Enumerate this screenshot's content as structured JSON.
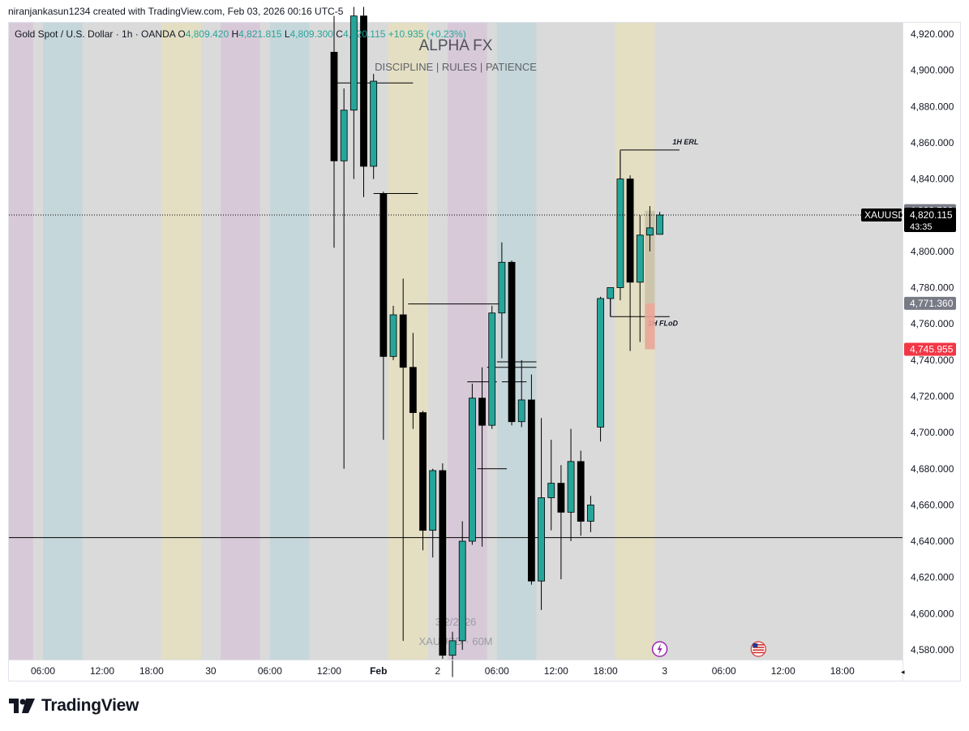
{
  "header": {
    "caption": "niranjankasun1234 created with TradingView.com, Feb 03, 2026 00:16 UTC-5"
  },
  "footer": {
    "brand": "TradingView"
  },
  "colors": {
    "up": "#26a69a",
    "down": "#000000",
    "price_label_bg": "#000000",
    "neutral_label_bg": "#787b86",
    "red_label_bg": "#f23645",
    "plot_bg": "#dadada"
  },
  "chart_data": {
    "type": "candlestick",
    "legend": {
      "symbol": "Gold Spot / U.S. Dollar · 1h · OANDA",
      "o_label": "O",
      "o": "4,809.420",
      "h_label": "H",
      "h": "4,821.815",
      "l_label": "L",
      "l": "4,809.300",
      "c_label": "C",
      "c": "4,820.115",
      "change": "+10.935 (+0.23%)"
    },
    "watermark": {
      "title": "ALPHA FX",
      "subtitle": "DISCIPLINE   |   RULES   |   PATIENCE"
    },
    "chart_watermark": {
      "date": "3/2/2026",
      "symbol": "XAUUSD · 60M"
    },
    "ylim": [
      4572,
      4932
    ],
    "y_ticks": [
      {
        "v": 4920,
        "label": "4,920.000"
      },
      {
        "v": 4900,
        "label": "4,900.000"
      },
      {
        "v": 4880,
        "label": "4,880.000"
      },
      {
        "v": 4860,
        "label": "4,860.000"
      },
      {
        "v": 4840,
        "label": "4,840.000"
      },
      {
        "v": 4800,
        "label": "4,800.000"
      },
      {
        "v": 4780,
        "label": "4,780.000"
      },
      {
        "v": 4760,
        "label": "4,760.000"
      },
      {
        "v": 4740,
        "label": "4,740.000"
      },
      {
        "v": 4720,
        "label": "4,720.000"
      },
      {
        "v": 4700,
        "label": "4,700.000"
      },
      {
        "v": 4680,
        "label": "4,680.000"
      },
      {
        "v": 4660,
        "label": "4,660.000"
      },
      {
        "v": 4640,
        "label": "4,640.000"
      },
      {
        "v": 4620,
        "label": "4,620.000"
      },
      {
        "v": 4600,
        "label": "4,600.000"
      },
      {
        "v": 4580,
        "label": "4,580.000"
      }
    ],
    "x_ticks": [
      {
        "i": -29.5,
        "label": "06:00"
      },
      {
        "i": -23.5,
        "label": "12:00"
      },
      {
        "i": -18.5,
        "label": "18:00"
      },
      {
        "i": -12.5,
        "label": "30"
      },
      {
        "i": -6.5,
        "label": "06:00"
      },
      {
        "i": -0.5,
        "label": "12:00"
      },
      {
        "i": 4.5,
        "label": "Feb",
        "bold": true
      },
      {
        "i": 10.5,
        "label": "2"
      },
      {
        "i": 16.5,
        "label": "06:00"
      },
      {
        "i": 22.5,
        "label": "12:00"
      },
      {
        "i": 27.5,
        "label": "18:00"
      },
      {
        "i": 33.5,
        "label": "3"
      },
      {
        "i": 39.5,
        "label": "06:00"
      },
      {
        "i": 45.5,
        "label": "12:00"
      },
      {
        "i": 51.5,
        "label": "18:00"
      }
    ],
    "sessions": [
      {
        "i0": -34.5,
        "i1": -30.5,
        "color": "#d8c9d9"
      },
      {
        "i0": -29.5,
        "i1": -25.5,
        "color": "#c6d7db"
      },
      {
        "i0": -17.5,
        "i1": -13.5,
        "color": "#e4dfc3"
      },
      {
        "i0": -11.5,
        "i1": -7.5,
        "color": "#d8c9d9"
      },
      {
        "i0": -6.5,
        "i1": -2.5,
        "color": "#c6d7db"
      },
      {
        "i0": 5.5,
        "i1": 9.5,
        "color": "#e4dfc3"
      },
      {
        "i0": 11.5,
        "i1": 15.5,
        "color": "#d8c9d9"
      },
      {
        "i0": 16.5,
        "i1": 20.5,
        "color": "#c6d7db"
      },
      {
        "i0": 28.5,
        "i1": 32.5,
        "color": "#e4dfc3"
      }
    ],
    "candles": [
      {
        "i": 0,
        "o": 4910,
        "h": 4930,
        "l": 4802,
        "c": 4850
      },
      {
        "i": 1,
        "o": 4850,
        "h": 4890,
        "l": 4680,
        "c": 4878
      },
      {
        "i": 2,
        "o": 4878,
        "h": 4935,
        "l": 4840,
        "c": 4930
      },
      {
        "i": 3,
        "o": 4930,
        "h": 4935,
        "l": 4830,
        "c": 4847
      },
      {
        "i": 4,
        "o": 4847,
        "h": 4898,
        "l": 4840,
        "c": 4894
      },
      {
        "i": 5,
        "o": 4832,
        "h": 4833,
        "l": 4696,
        "c": 4742
      },
      {
        "i": 6,
        "o": 4742,
        "h": 4770,
        "l": 4740,
        "c": 4765
      },
      {
        "i": 7,
        "o": 4765,
        "h": 4785,
        "l": 4585,
        "c": 4736
      },
      {
        "i": 8,
        "o": 4736,
        "h": 4755,
        "l": 4702,
        "c": 4711
      },
      {
        "i": 9,
        "o": 4711,
        "h": 4712,
        "l": 4635,
        "c": 4646
      },
      {
        "i": 10,
        "o": 4646,
        "h": 4680,
        "l": 4631,
        "c": 4679
      },
      {
        "i": 11,
        "o": 4679,
        "h": 4683,
        "l": 4575,
        "c": 4577
      },
      {
        "i": 12,
        "o": 4577,
        "h": 4590,
        "l": 4565,
        "c": 4585
      },
      {
        "i": 13,
        "o": 4585,
        "h": 4651,
        "l": 4580,
        "c": 4640
      },
      {
        "i": 14,
        "o": 4640,
        "h": 4727,
        "l": 4638,
        "c": 4719
      },
      {
        "i": 15,
        "o": 4719,
        "h": 4736,
        "l": 4637,
        "c": 4704
      },
      {
        "i": 16,
        "o": 4704,
        "h": 4770,
        "l": 4702,
        "c": 4766
      },
      {
        "i": 17,
        "o": 4766,
        "h": 4805,
        "l": 4741,
        "c": 4794
      },
      {
        "i": 18,
        "o": 4794,
        "h": 4795,
        "l": 4704,
        "c": 4706
      },
      {
        "i": 19,
        "o": 4706,
        "h": 4740,
        "l": 4703,
        "c": 4718
      },
      {
        "i": 20,
        "o": 4718,
        "h": 4732,
        "l": 4616,
        "c": 4618
      },
      {
        "i": 21,
        "o": 4618,
        "h": 4708,
        "l": 4602,
        "c": 4664
      },
      {
        "i": 22,
        "o": 4664,
        "h": 4696,
        "l": 4646,
        "c": 4672
      },
      {
        "i": 23,
        "o": 4672,
        "h": 4682,
        "l": 4619,
        "c": 4656
      },
      {
        "i": 24,
        "o": 4656,
        "h": 4702,
        "l": 4640,
        "c": 4684
      },
      {
        "i": 25,
        "o": 4684,
        "h": 4690,
        "l": 4643,
        "c": 4651
      },
      {
        "i": 26,
        "o": 4651,
        "h": 4665,
        "l": 4645,
        "c": 4660
      },
      {
        "i": 27,
        "o": 4703,
        "h": 4775,
        "l": 4695,
        "c": 4774
      },
      {
        "i": 28,
        "o": 4774,
        "h": 4779,
        "l": 4764,
        "c": 4780
      },
      {
        "i": 29,
        "o": 4780,
        "h": 4855,
        "l": 4773,
        "c": 4840
      },
      {
        "i": 30,
        "o": 4840,
        "h": 4842,
        "l": 4745,
        "c": 4783
      },
      {
        "i": 31,
        "o": 4783,
        "h": 4820,
        "l": 4750,
        "c": 4809
      },
      {
        "i": 32,
        "o": 4809,
        "h": 4825,
        "l": 4800,
        "c": 4813
      },
      {
        "i": 33,
        "o": 4809.42,
        "h": 4821.815,
        "l": 4809.3,
        "c": 4820.115
      }
    ],
    "levels": [
      {
        "i0": 0,
        "i1": 8,
        "y": 4893
      },
      {
        "i0": 4,
        "i1": 8.5,
        "y": 4832
      },
      {
        "i0": 7.5,
        "i1": 17,
        "y": 4771
      },
      {
        "i0": 16.5,
        "i1": 20.5,
        "y": 4739
      },
      {
        "i0": 15.5,
        "i1": 20.5,
        "y": 4736
      },
      {
        "i0": 13.5,
        "i1": 16.5,
        "y": 4728
      },
      {
        "i0": 14.5,
        "i1": 17.5,
        "y": 4680
      },
      {
        "i0": 17,
        "i1": 19.5,
        "y": 4728
      },
      {
        "i0": 29,
        "i1": 35,
        "y": 4856
      },
      {
        "i0": 28,
        "i1": 34,
        "y": 4764
      },
      {
        "i0": -33,
        "i1": 59,
        "y": 4642
      }
    ],
    "level_labels": [
      {
        "i": 34.3,
        "y": 4859,
        "text": "1H ERL"
      },
      {
        "i": 31.8,
        "y": 4759,
        "text": "1H FLoD"
      }
    ],
    "current_price": {
      "symbol": "XAUUSD",
      "price": "4,820.115",
      "countdown": "43:35",
      "y": 4820.115
    },
    "price_labels": [
      {
        "y": 4822.5,
        "label": "4,822.500",
        "kind": "neutral"
      },
      {
        "y": 4771.36,
        "label": "4,771.360",
        "kind": "neutral"
      },
      {
        "y": 4745.955,
        "label": "4,745.955",
        "kind": "red"
      }
    ],
    "position_box": {
      "i0": 31.5,
      "i1": 32.5,
      "entry": 4771.36,
      "target": 4822.5,
      "stop": 4745.955
    }
  }
}
